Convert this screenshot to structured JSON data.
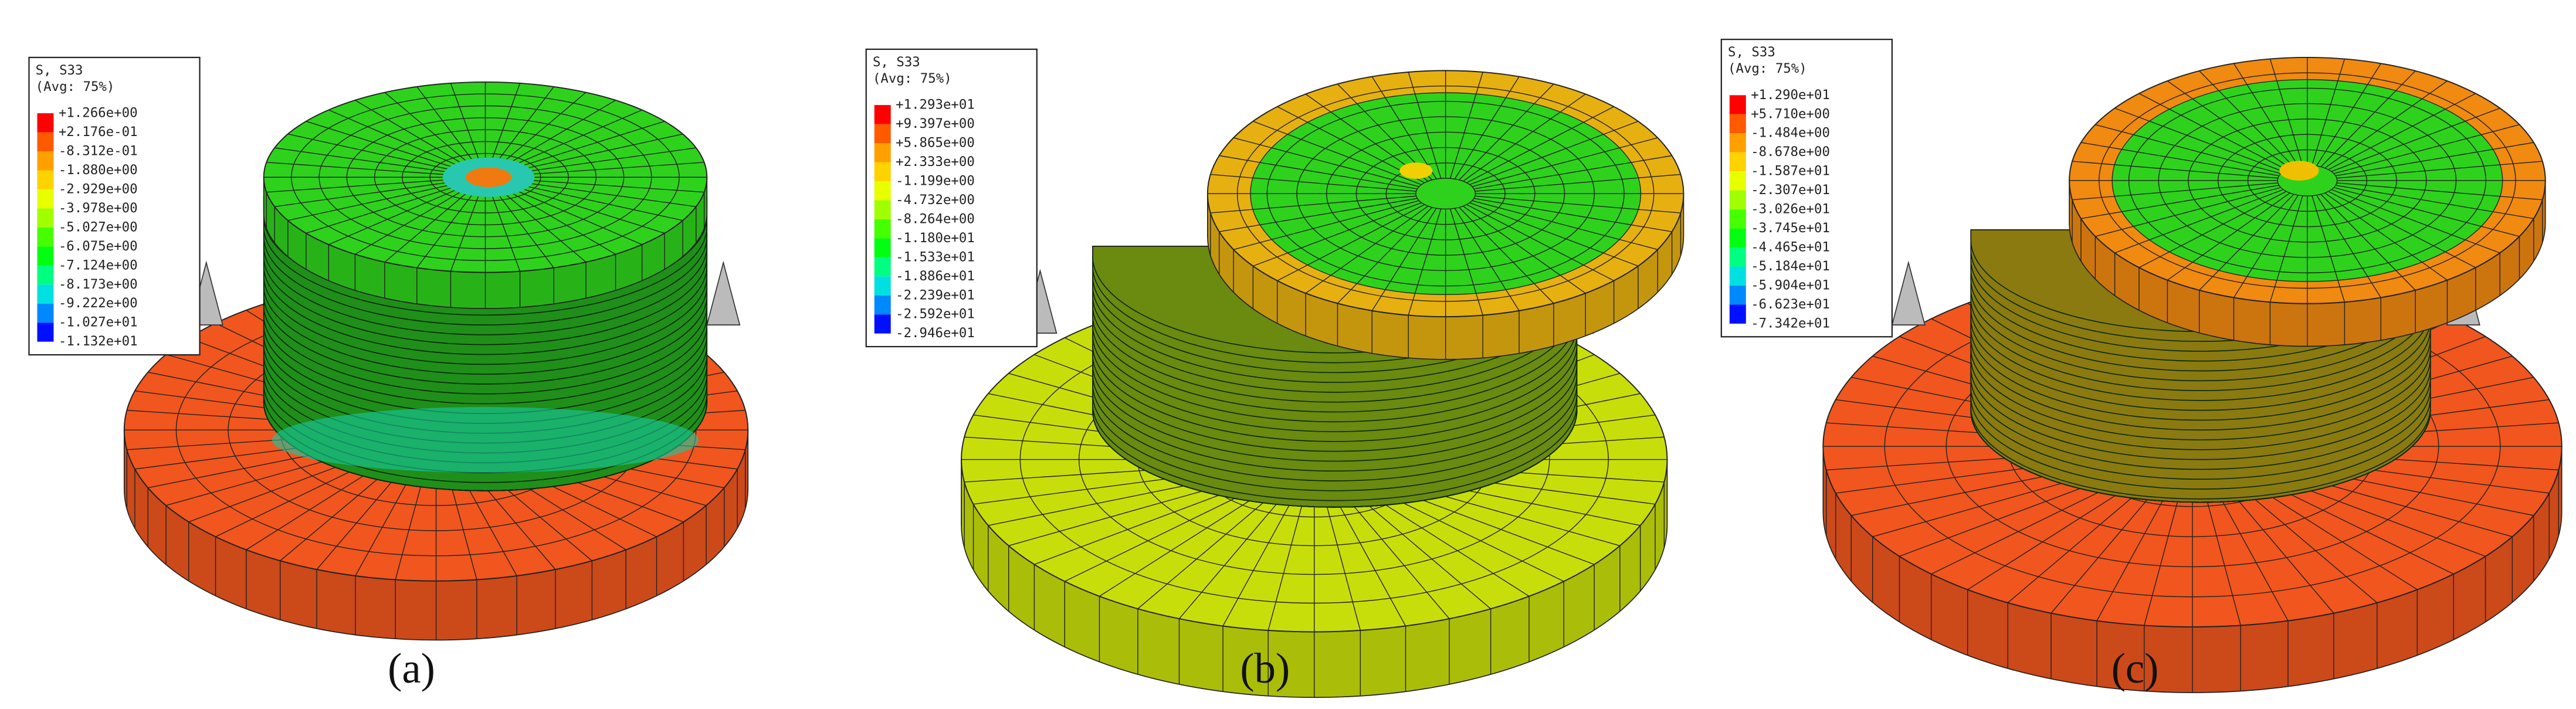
{
  "panels": [
    {
      "label": "(a)",
      "legend": {
        "title": "S, S33",
        "subtitle": "(Avg: 75%)",
        "values": [
          "+1.266e+00",
          "+2.176e-01",
          "-8.312e-01",
          "-1.880e+00",
          "-2.929e+00",
          "-3.978e+00",
          "-5.027e+00",
          "-6.075e+00",
          "-7.124e+00",
          "-8.173e+00",
          "-9.222e+00",
          "-1.027e+01",
          "-1.132e+01"
        ]
      }
    },
    {
      "label": "(b)",
      "legend": {
        "title": "S, S33",
        "subtitle": "(Avg: 75%)",
        "values": [
          "+1.293e+01",
          "+9.397e+00",
          "+5.865e+00",
          "+2.333e+00",
          "-1.199e+00",
          "-4.732e+00",
          "-8.264e+00",
          "-1.180e+01",
          "-1.533e+01",
          "-1.886e+01",
          "-2.239e+01",
          "-2.592e+01",
          "-2.946e+01"
        ]
      }
    },
    {
      "label": "(c)",
      "legend": {
        "title": "S, S33",
        "subtitle": "(Avg: 75%)",
        "values": [
          "+1.290e+01",
          "+5.710e+00",
          "-1.484e+00",
          "-8.678e+00",
          "-1.587e+01",
          "-2.307e+01",
          "-3.026e+01",
          "-3.745e+01",
          "-4.465e+01",
          "-5.184e+01",
          "-5.904e+01",
          "-6.623e+01",
          "-7.342e+01"
        ]
      }
    }
  ]
}
